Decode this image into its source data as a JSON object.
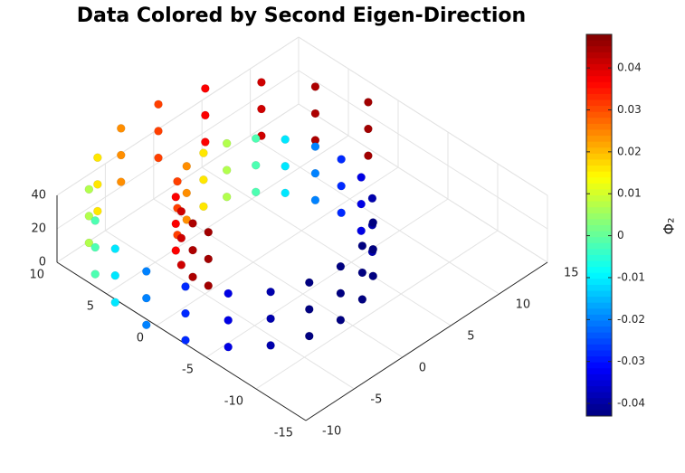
{
  "chart_data": {
    "type": "scatter3d",
    "title": "Data Colored by Second Eigen-Direction",
    "colorbar_label": "Φ₂",
    "colormap": "jet",
    "clim": [
      -0.043,
      0.048
    ],
    "colorbar_ticks": [
      -0.04,
      -0.03,
      -0.02,
      -0.01,
      0,
      0.01,
      0.02,
      0.03,
      0.04
    ],
    "xlim": [
      -10,
      15
    ],
    "xticks": [
      -10,
      -5,
      0,
      5,
      10,
      15
    ],
    "ylim": [
      -15,
      10
    ],
    "yticks": [
      -15,
      -10,
      -5,
      0,
      5,
      10
    ],
    "zlim": [
      0,
      40
    ],
    "zticks": [
      0,
      20,
      40
    ],
    "grid": true,
    "x": [
      -4.7,
      -4.79,
      -4.41,
      -3.54,
      -2.21,
      -0.52,
      1.4,
      3.36,
      5.23,
      6.65,
      7.61,
      7.92,
      7.49,
      6.37,
      4.47,
      2.05,
      -0.71,
      -3.59,
      -6.31,
      -8.6,
      -10.23,
      -11.0,
      -10.78,
      -9.54,
      -7.35,
      -4.37,
      -0.83,
      3.0,
      6.66,
      10.02,
      12.41,
      13.87,
      -4.7,
      -4.79,
      -4.41,
      -3.54,
      -2.21,
      -0.52,
      1.4,
      3.36,
      5.23,
      6.65,
      7.61,
      7.92,
      7.49,
      6.37,
      4.47,
      2.05,
      -0.71,
      -3.59,
      -6.31,
      -8.6,
      -10.23,
      -11.0,
      -10.78,
      -9.54,
      -7.35,
      -4.37,
      -0.83,
      3.0,
      6.66,
      10.02,
      12.41,
      13.87,
      -4.7,
      -4.79,
      -4.41,
      -3.54,
      -2.21,
      -0.52,
      1.4,
      3.36,
      5.23,
      6.65,
      7.61,
      7.92,
      7.49,
      6.37,
      4.47,
      2.05,
      -0.71,
      -3.59,
      -6.31,
      -8.6,
      -10.23,
      -11.0,
      -10.78,
      -9.54,
      -7.35,
      -4.37,
      -0.83,
      3.0,
      6.66,
      10.02,
      12.41,
      13.87
    ],
    "y": [
      -0.06,
      1.42,
      2.94,
      4.34,
      5.47,
      6.18,
      6.35,
      5.91,
      4.81,
      3.24,
      1.15,
      -1.16,
      -3.58,
      -5.78,
      -7.7,
      -8.97,
      -9.47,
      -9.12,
      -7.88,
      -5.84,
      -3.13,
      0.05,
      3.4,
      6.61,
      9.36,
      11.39,
      12.47,
      12.44,
      11.28,
      8.9,
      5.81,
      1.91,
      -0.06,
      1.42,
      2.94,
      4.34,
      5.47,
      6.18,
      6.35,
      5.91,
      4.81,
      3.24,
      1.15,
      -1.16,
      -3.58,
      -5.78,
      -7.7,
      -8.97,
      -9.47,
      -9.12,
      -7.88,
      -5.84,
      -3.13,
      0.05,
      3.4,
      6.61,
      9.36,
      11.39,
      12.47,
      12.44,
      11.28,
      8.9,
      5.81,
      1.91,
      -0.06,
      1.42,
      2.94,
      4.34,
      5.47,
      6.18,
      6.35,
      5.91,
      4.81,
      3.24,
      1.15,
      -1.16,
      -3.58,
      -5.78,
      -7.7,
      -8.97,
      -9.47,
      -9.12,
      -7.88,
      -5.84,
      -3.13,
      0.05,
      3.4,
      6.61,
      9.36,
      11.39,
      12.47,
      12.44,
      11.28,
      8.9,
      5.81,
      1.91
    ],
    "z": [
      4,
      4,
      4,
      4,
      4,
      4,
      4,
      4,
      4,
      4,
      4,
      4,
      4,
      4,
      4,
      4,
      4,
      4,
      4,
      4,
      4,
      4,
      4,
      4,
      4,
      4,
      4,
      4,
      4,
      4,
      4,
      4,
      20,
      20,
      20,
      20,
      20,
      20,
      20,
      20,
      20,
      20,
      20,
      20,
      20,
      20,
      20,
      20,
      20,
      20,
      20,
      20,
      20,
      20,
      20,
      20,
      20,
      20,
      20,
      20,
      20,
      20,
      20,
      20,
      36,
      36,
      36,
      36,
      36,
      36,
      36,
      36,
      36,
      36,
      36,
      36,
      36,
      36,
      36,
      36,
      36,
      36,
      36,
      36,
      36,
      36,
      36,
      36,
      36,
      36,
      36,
      36,
      36,
      36,
      36,
      36
    ],
    "values": [
      0.045,
      0.044,
      0.041,
      0.037,
      0.031,
      0.024,
      0.016,
      0.007,
      -0.002,
      -0.011,
      -0.02,
      -0.028,
      -0.034,
      -0.039,
      -0.043,
      -0.043,
      -0.043,
      -0.043,
      -0.039,
      -0.034,
      -0.028,
      -0.02,
      -0.011,
      -0.002,
      0.007,
      0.016,
      0.024,
      0.031,
      0.037,
      0.041,
      0.044,
      0.045,
      0.045,
      0.044,
      0.041,
      0.037,
      0.031,
      0.024,
      0.016,
      0.007,
      -0.002,
      -0.011,
      -0.02,
      -0.028,
      -0.034,
      -0.039,
      -0.043,
      -0.043,
      -0.043,
      -0.043,
      -0.039,
      -0.034,
      -0.028,
      -0.02,
      -0.011,
      -0.002,
      0.007,
      0.016,
      0.024,
      0.031,
      0.037,
      0.041,
      0.044,
      0.045,
      0.045,
      0.044,
      0.041,
      0.037,
      0.031,
      0.024,
      0.016,
      0.007,
      -0.002,
      -0.011,
      -0.02,
      -0.028,
      -0.034,
      -0.039,
      -0.043,
      -0.043,
      -0.043,
      -0.043,
      -0.039,
      -0.034,
      -0.028,
      -0.02,
      -0.011,
      -0.002,
      0.007,
      0.016,
      0.024,
      0.031,
      0.037,
      0.041,
      0.044,
      0.045
    ]
  }
}
